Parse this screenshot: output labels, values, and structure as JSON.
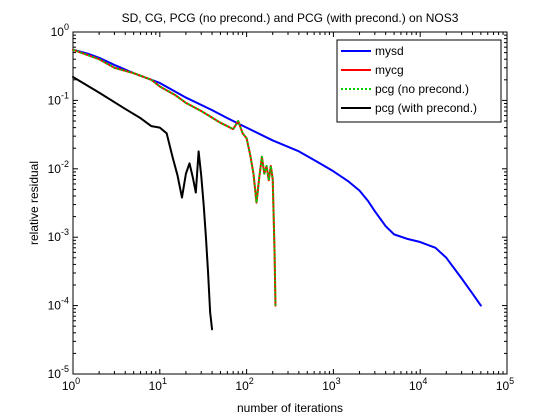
{
  "chart_data": {
    "type": "line",
    "title": "SD, CG, PCG (no precond.) and PCG (with precond.) on NOS3",
    "xlabel": "number of iterations",
    "ylabel": "relative residual",
    "xscale": "log",
    "yscale": "log",
    "xlim": [
      1,
      100000
    ],
    "ylim": [
      1e-05,
      1
    ],
    "grid": false,
    "legend_position": "top-right",
    "x_ticks": [
      {
        "value": 1,
        "base": "10",
        "exp": "0"
      },
      {
        "value": 10,
        "base": "10",
        "exp": "1"
      },
      {
        "value": 100,
        "base": "10",
        "exp": "2"
      },
      {
        "value": 1000,
        "base": "10",
        "exp": "3"
      },
      {
        "value": 10000,
        "base": "10",
        "exp": "4"
      },
      {
        "value": 100000,
        "base": "10",
        "exp": "5"
      }
    ],
    "y_ticks": [
      {
        "value": 1,
        "base": "10",
        "exp": "0"
      },
      {
        "value": 0.1,
        "base": "10",
        "exp": "-1"
      },
      {
        "value": 0.01,
        "base": "10",
        "exp": "-2"
      },
      {
        "value": 0.001,
        "base": "10",
        "exp": "-3"
      },
      {
        "value": 0.0001,
        "base": "10",
        "exp": "-4"
      },
      {
        "value": 1e-05,
        "base": "10",
        "exp": "-5"
      }
    ],
    "series": [
      {
        "name": "mysd",
        "color": "#0000ff",
        "dash": "solid",
        "x": [
          1,
          1.5,
          2,
          3,
          5,
          8,
          10,
          20,
          40,
          60,
          100,
          200,
          400,
          700,
          1000,
          1500,
          2000,
          2500,
          3000,
          4000,
          5000,
          7000,
          10000,
          15000,
          20000,
          30000,
          40000,
          50000
        ],
        "y": [
          0.55,
          0.48,
          0.42,
          0.33,
          0.25,
          0.2,
          0.18,
          0.11,
          0.072,
          0.055,
          0.04,
          0.026,
          0.018,
          0.012,
          0.0092,
          0.0065,
          0.0048,
          0.0034,
          0.0024,
          0.00145,
          0.0011,
          0.00095,
          0.00085,
          0.0007,
          0.0005,
          0.00025,
          0.00015,
          0.0001
        ]
      },
      {
        "name": "mycg",
        "color": "#ff0000",
        "dash": "solid",
        "x": [
          1,
          2,
          3,
          5,
          8,
          10,
          15,
          20,
          30,
          40,
          50,
          60,
          70,
          80,
          90,
          100,
          110,
          120,
          130,
          140,
          150,
          160,
          170,
          180,
          190,
          200,
          210,
          215
        ],
        "y": [
          0.55,
          0.4,
          0.3,
          0.25,
          0.2,
          0.16,
          0.12,
          0.092,
          0.07,
          0.056,
          0.047,
          0.042,
          0.038,
          0.05,
          0.033,
          0.028,
          0.016,
          0.0085,
          0.0032,
          0.0075,
          0.015,
          0.0085,
          0.011,
          0.0068,
          0.011,
          0.007,
          0.0006,
          0.0001
        ]
      },
      {
        "name": "pcg (no precond.)",
        "color": "#00cc00",
        "dash": "dotted",
        "x": [
          1,
          2,
          3,
          5,
          8,
          10,
          15,
          20,
          30,
          40,
          50,
          60,
          70,
          80,
          90,
          100,
          110,
          120,
          130,
          140,
          150,
          160,
          170,
          180,
          190,
          200,
          210,
          215
        ],
        "y": [
          0.55,
          0.4,
          0.3,
          0.25,
          0.2,
          0.16,
          0.12,
          0.092,
          0.07,
          0.056,
          0.047,
          0.042,
          0.038,
          0.05,
          0.033,
          0.028,
          0.016,
          0.0085,
          0.0032,
          0.0075,
          0.015,
          0.0085,
          0.011,
          0.0068,
          0.011,
          0.007,
          0.0006,
          0.0001
        ]
      },
      {
        "name": "pcg (with precond.)",
        "color": "#000000",
        "dash": "solid",
        "x": [
          1,
          2,
          4,
          6,
          8,
          10,
          12,
          14,
          16,
          18,
          20,
          22,
          24,
          26,
          28,
          30,
          32,
          34,
          36,
          38,
          40
        ],
        "y": [
          0.22,
          0.13,
          0.075,
          0.055,
          0.042,
          0.04,
          0.033,
          0.015,
          0.008,
          0.0038,
          0.0085,
          0.012,
          0.0075,
          0.0045,
          0.018,
          0.008,
          0.003,
          0.001,
          0.0003,
          8e-05,
          4.5e-05
        ]
      }
    ]
  }
}
